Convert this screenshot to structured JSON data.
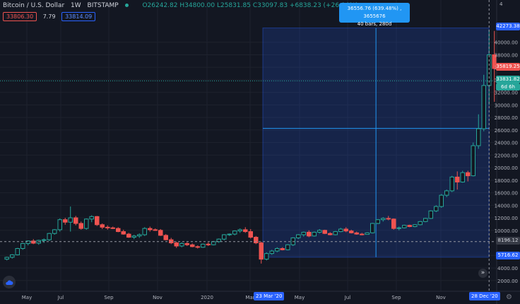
{
  "header": {
    "symbol": "Bitcoin / U.S. Dollar",
    "interval": "1W",
    "exchange": "BITSTAMP",
    "ohlc": {
      "open": "O26242.82",
      "high": "H34800.00",
      "low": "L25831.85",
      "close": "C33097.83",
      "change": "+6838.23 (+26.04%)"
    }
  },
  "quotes": {
    "sell": "33806.30",
    "spread": "7.79",
    "buy": "33814.09"
  },
  "measure_tooltip": {
    "line1": "36556.76 (639.48%) , 3655676",
    "line2": "40 bars, 280d"
  },
  "price_axis": {
    "labels": [
      "40000.00",
      "38000.00",
      "36000.00",
      "34000.00",
      "32000.00",
      "30000.00",
      "28000.00",
      "26000.00",
      "24000.00",
      "22000.00",
      "20000.00",
      "18000.00",
      "16000.00",
      "14000.00",
      "12000.00",
      "10000.00",
      "6000.00",
      "4000.00",
      "2000.00"
    ],
    "top_label_partial": "4",
    "tag_top": "42273.38",
    "tag_last": "35819.25",
    "tag_prev": "33831.82",
    "tag_time": "6d 6h",
    "tag_cross": "8196.12",
    "tag_bottom": "5716.62"
  },
  "time_axis": {
    "labels": [
      "May",
      "Jul",
      "Sep",
      "Nov",
      "2020",
      "Mar",
      "May",
      "Jul",
      "Sep",
      "Nov"
    ],
    "tag_start": "23 Mar '20",
    "tag_end": "28 Dec '20"
  },
  "icons": {
    "logo": "tradingview-logo-icon",
    "scroll": "scroll-right-icon",
    "settings": "gear-icon"
  },
  "colors": {
    "background": "#131722",
    "up": "#26a69a",
    "down": "#ef5350",
    "accent": "#2962ff",
    "measure": "#2196f3"
  },
  "chart_data": {
    "type": "candlestick",
    "ylim": [
      1000,
      43000
    ],
    "ohlc": [
      [
        5400,
        5800,
        5200,
        5700
      ],
      [
        5700,
        6200,
        5500,
        6100
      ],
      [
        6100,
        7200,
        6000,
        7100
      ],
      [
        7100,
        8000,
        6900,
        7900
      ],
      [
        7900,
        8400,
        7600,
        8300
      ],
      [
        8300,
        8600,
        7800,
        7950
      ],
      [
        7950,
        8500,
        7700,
        8400
      ],
      [
        8400,
        8700,
        8000,
        8500
      ],
      [
        8500,
        9600,
        8300,
        9500
      ],
      [
        9500,
        10200,
        9300,
        10100
      ],
      [
        10100,
        11900,
        9800,
        11700
      ],
      [
        11700,
        12000,
        10900,
        11300
      ],
      [
        11300,
        13800,
        9800,
        12000
      ],
      [
        12000,
        12300,
        10800,
        11100
      ],
      [
        11100,
        11400,
        10100,
        10300
      ],
      [
        10300,
        11900,
        10100,
        11800
      ],
      [
        11800,
        12400,
        11300,
        12200
      ],
      [
        12200,
        12300,
        10700,
        10900
      ],
      [
        10900,
        11100,
        10200,
        10500
      ],
      [
        10500,
        10800,
        10100,
        10400
      ],
      [
        10400,
        10600,
        10200,
        10300
      ],
      [
        10300,
        10500,
        9700,
        9800
      ],
      [
        9800,
        10100,
        9300,
        9400
      ],
      [
        9400,
        9600,
        8800,
        8900
      ],
      [
        8900,
        9300,
        8600,
        9100
      ],
      [
        9100,
        9500,
        8800,
        9300
      ],
      [
        9300,
        10500,
        9100,
        10300
      ],
      [
        10300,
        10600,
        9800,
        10100
      ],
      [
        10100,
        10300,
        9900,
        10000
      ],
      [
        10000,
        10200,
        9100,
        9200
      ],
      [
        9200,
        9400,
        8400,
        8500
      ],
      [
        8500,
        8800,
        7800,
        8000
      ],
      [
        8000,
        8200,
        7200,
        7500
      ],
      [
        7500,
        8100,
        7300,
        7900
      ],
      [
        7900,
        8100,
        7500,
        7700
      ],
      [
        7700,
        7900,
        7300,
        7400
      ],
      [
        7400,
        7600,
        7100,
        7300
      ],
      [
        7300,
        7900,
        7200,
        7800
      ],
      [
        7800,
        8100,
        7500,
        7700
      ],
      [
        7700,
        8300,
        7600,
        8200
      ],
      [
        8200,
        8700,
        8000,
        8600
      ],
      [
        8600,
        9400,
        8400,
        9300
      ],
      [
        9300,
        9500,
        9100,
        9400
      ],
      [
        9400,
        10000,
        9200,
        9900
      ],
      [
        9900,
        10300,
        9600,
        10100
      ],
      [
        10100,
        10500,
        9600,
        9800
      ],
      [
        9800,
        10200,
        8700,
        8900
      ],
      [
        8900,
        9100,
        7800,
        8000
      ],
      [
        8000,
        8200,
        4700,
        5400
      ],
      [
        5400,
        6500,
        5200,
        6300
      ],
      [
        6300,
        6900,
        6100,
        6700
      ],
      [
        6700,
        7300,
        6500,
        7100
      ],
      [
        7100,
        7300,
        6800,
        6900
      ],
      [
        6900,
        7800,
        6800,
        7700
      ],
      [
        7700,
        8900,
        7500,
        8800
      ],
      [
        8800,
        9400,
        8600,
        9300
      ],
      [
        9300,
        9800,
        9000,
        9700
      ],
      [
        9700,
        10000,
        8900,
        9100
      ],
      [
        9100,
        9800,
        9000,
        9700
      ],
      [
        9700,
        10200,
        9500,
        10000
      ],
      [
        10000,
        10100,
        9400,
        9500
      ],
      [
        9500,
        9700,
        9200,
        9300
      ],
      [
        9300,
        9900,
        9200,
        9800
      ],
      [
        9800,
        10400,
        9700,
        10200
      ],
      [
        10200,
        10500,
        9700,
        9900
      ],
      [
        9900,
        10100,
        9500,
        9600
      ],
      [
        9600,
        9800,
        9300,
        9400
      ],
      [
        9400,
        9600,
        9200,
        9350
      ],
      [
        9350,
        9700,
        9300,
        9600
      ],
      [
        9600,
        11200,
        9500,
        11100
      ],
      [
        11100,
        11800,
        11000,
        11700
      ],
      [
        11700,
        12100,
        11400,
        11900
      ],
      [
        11900,
        12300,
        11600,
        11800
      ],
      [
        11800,
        11900,
        10100,
        10300
      ],
      [
        10300,
        10600,
        10000,
        10400
      ],
      [
        10400,
        10900,
        10300,
        10800
      ],
      [
        10800,
        10900,
        10500,
        10600
      ],
      [
        10600,
        11000,
        10500,
        10900
      ],
      [
        10900,
        11500,
        10800,
        11400
      ],
      [
        11400,
        12000,
        11300,
        11900
      ],
      [
        11900,
        13200,
        11800,
        13100
      ],
      [
        13100,
        14000,
        12900,
        13800
      ],
      [
        13800,
        15800,
        13600,
        15600
      ],
      [
        15600,
        16500,
        15300,
        16300
      ],
      [
        16300,
        18700,
        16100,
        18500
      ],
      [
        18500,
        19400,
        16500,
        17700
      ],
      [
        17700,
        19500,
        17600,
        19200
      ],
      [
        19200,
        19500,
        17800,
        18700
      ],
      [
        18700,
        24000,
        18600,
        23500
      ],
      [
        23500,
        28500,
        23000,
        26200
      ],
      [
        26200,
        34800,
        25800,
        33100
      ],
      [
        33100,
        42000,
        30000,
        38000
      ],
      [
        38000,
        41800,
        30500,
        35800
      ]
    ],
    "measure": {
      "start": "23 Mar '20",
      "end": "28 Dec '20",
      "low": 5716.62,
      "high": 42273.38
    },
    "crosshair_price": 8196.12
  }
}
